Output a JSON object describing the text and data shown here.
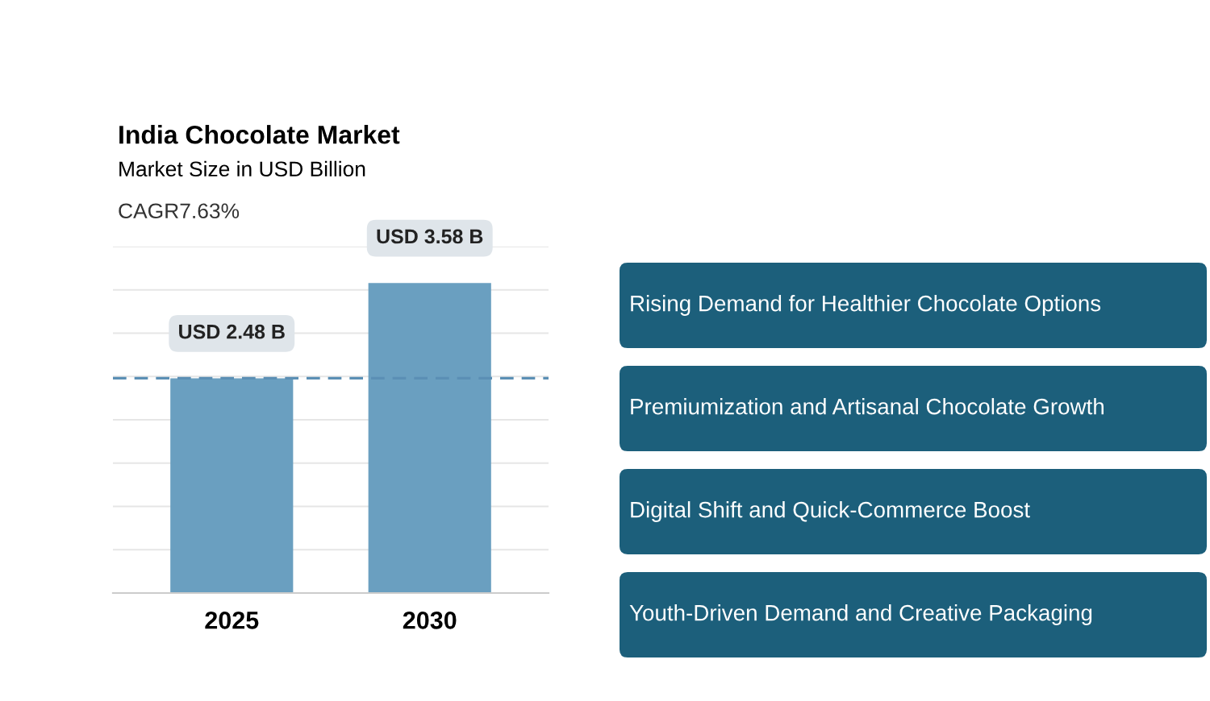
{
  "chart_data": [
    {
      "type": "bar",
      "title": "India Chocolate Market",
      "subtitle": "Market Size in USD Billion",
      "categories": [
        "2025",
        "2030"
      ],
      "values": [
        2.48,
        3.58
      ],
      "color": "#6a9fc0",
      "value_labels": [
        "USD 2.48 B",
        "USD 3.58 B"
      ],
      "ylim": [
        0,
        4
      ],
      "yticks": [
        {
          "value": 0.5,
          "label": null
        },
        {
          "value": 1,
          "label": null
        },
        {
          "value": 1.5,
          "label": null
        },
        {
          "value": 2,
          "label": null
        },
        {
          "value": 2.5,
          "label": null
        },
        {
          "value": 3,
          "label": null
        },
        {
          "value": 3.5,
          "label": null
        },
        {
          "value": 4,
          "label": null
        }
      ],
      "grid": "y",
      "tick_labels": "x",
      "ref_lines": [
        {
          "axis": "y",
          "value": 2.48,
          "color": "#5b8fb5",
          "line_style": "dashed"
        }
      ],
      "annotations": [
        "CAGR7.63%"
      ]
    },
    {
      "type": "other",
      "color": "#1c5f7b",
      "annotations": [
        "Rising Demand for Healthier Chocolate Options",
        "Premiumization and Artisanal Chocolate Growth",
        "Digital Shift and Quick-Commerce Boost",
        "Youth-Driven Demand and Creative Packaging"
      ]
    }
  ]
}
